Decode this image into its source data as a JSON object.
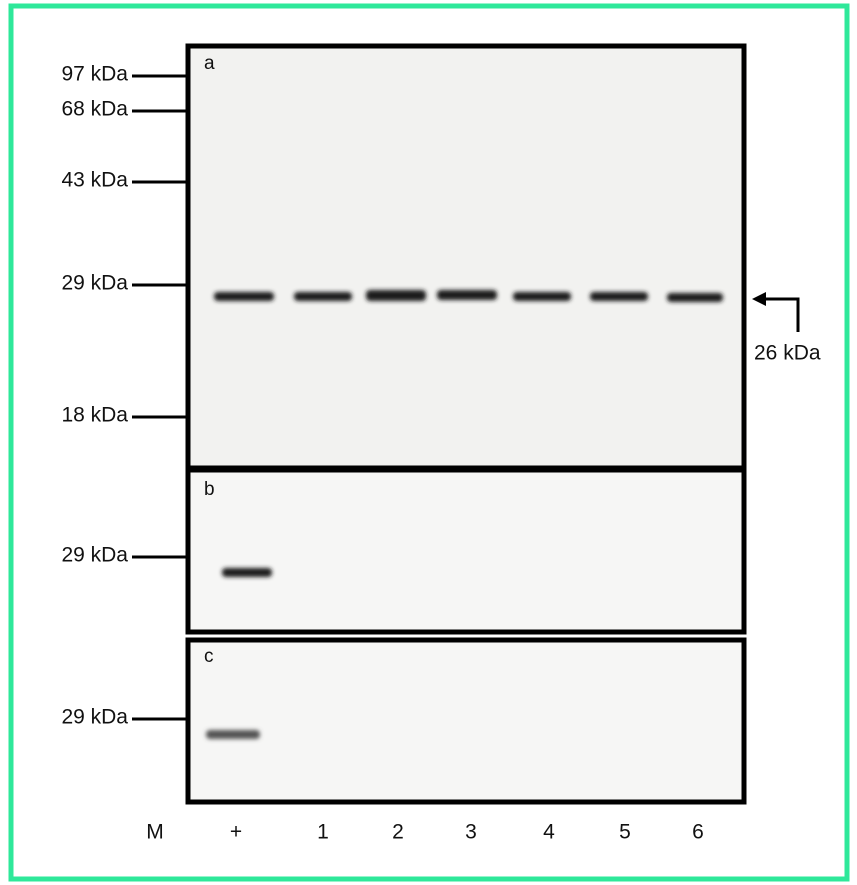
{
  "panels": [
    {
      "letter": "a",
      "markers": [
        "97 kDa",
        "68 kDa",
        "43 kDa",
        "29 kDa",
        "18 kDa"
      ]
    },
    {
      "letter": "b",
      "markers": [
        "29 kDa"
      ]
    },
    {
      "letter": "c",
      "markers": [
        "29 kDa"
      ]
    }
  ],
  "band_label": "26 kDa",
  "lanes": [
    "M",
    "+",
    "1",
    "2",
    "3",
    "4",
    "5",
    "6"
  ]
}
